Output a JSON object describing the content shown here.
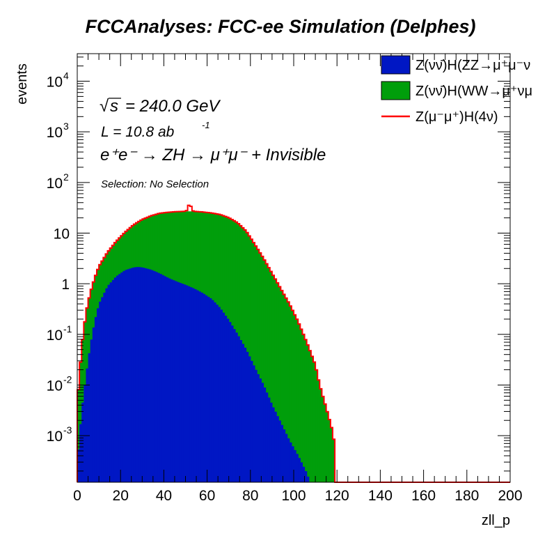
{
  "chart_data": {
    "type": "histogram",
    "title": "FCCAnalyses: FCC-ee Simulation (Delphes)",
    "xlabel": "zll_p",
    "ylabel": "events",
    "xlim": [
      0,
      200
    ],
    "ylim": [
      0.00012,
      35000
    ],
    "yscale": "log",
    "bin_width": 1,
    "bin_start": 0,
    "x_ticks": [
      0,
      20,
      40,
      60,
      80,
      100,
      120,
      140,
      160,
      180,
      200
    ],
    "y_ticks": [
      {
        "value": 0.001,
        "base": "10",
        "exp": "-3"
      },
      {
        "value": 0.01,
        "base": "10",
        "exp": "-2"
      },
      {
        "value": 0.1,
        "base": "10",
        "exp": "-1"
      },
      {
        "value": 1,
        "base": "1",
        "exp": ""
      },
      {
        "value": 10,
        "base": "10",
        "exp": ""
      },
      {
        "value": 100,
        "base": "10",
        "exp": "2"
      },
      {
        "value": 1000,
        "base": "10",
        "exp": "3"
      },
      {
        "value": 10000,
        "base": "10",
        "exp": "4"
      }
    ],
    "annotations": {
      "sqrt_s": "= 240.0 GeV",
      "sqrt_symbol": "√",
      "sqrt_s_var": "s",
      "lumi_prefix": "L = 10.8 ab",
      "lumi_exp": "-1",
      "process": "e⁺e⁻ → ZH → μ⁺μ⁻ + Invisible",
      "selection": "Selection: No Selection"
    },
    "series": [
      {
        "name": "Z(νν̄)H(ZZ→μ⁺μ⁻ν",
        "legend_text": "Z(νν̄)H(ZZ→μ⁺μ⁻ν",
        "style": "fill",
        "color": "#0017c4",
        "knots": [
          [
            0,
            0.0003
          ],
          [
            2,
            0.003
          ],
          [
            4,
            0.015
          ],
          [
            6,
            0.06
          ],
          [
            8,
            0.18
          ],
          [
            10,
            0.4
          ],
          [
            14,
            0.9
          ],
          [
            18,
            1.4
          ],
          [
            22,
            1.85
          ],
          [
            26,
            2.1
          ],
          [
            28,
            2.15
          ],
          [
            30,
            2.1
          ],
          [
            34,
            1.9
          ],
          [
            38,
            1.6
          ],
          [
            42,
            1.3
          ],
          [
            46,
            1.1
          ],
          [
            50,
            0.95
          ],
          [
            54,
            0.8
          ],
          [
            58,
            0.65
          ],
          [
            62,
            0.5
          ],
          [
            66,
            0.33
          ],
          [
            70,
            0.19
          ],
          [
            74,
            0.1
          ],
          [
            78,
            0.05
          ],
          [
            82,
            0.022
          ],
          [
            86,
            0.01
          ],
          [
            90,
            0.004
          ],
          [
            94,
            0.0018
          ],
          [
            98,
            0.0008
          ],
          [
            102,
            0.0004
          ],
          [
            106,
            0.00018
          ],
          [
            108,
            0.0001
          ]
        ]
      },
      {
        "name": "Z(νν̄)H(WW→μ⁺νμ",
        "legend_text": "Z(νν̄)H(WW→μ⁺νμ",
        "style": "fill",
        "color": "#009e0b",
        "knots": [
          [
            0,
            0.004
          ],
          [
            2,
            0.05
          ],
          [
            4,
            0.25
          ],
          [
            6,
            0.6
          ],
          [
            8,
            1.1
          ],
          [
            10,
            1.8
          ],
          [
            14,
            3.3
          ],
          [
            18,
            5.5
          ],
          [
            22,
            8.5
          ],
          [
            26,
            12.5
          ],
          [
            30,
            16.5
          ],
          [
            34,
            20
          ],
          [
            38,
            23
          ],
          [
            42,
            24.5
          ],
          [
            46,
            25.5
          ],
          [
            50,
            26
          ],
          [
            54,
            26
          ],
          [
            58,
            25.5
          ],
          [
            62,
            24.5
          ],
          [
            66,
            23
          ],
          [
            70,
            20
          ],
          [
            74,
            16
          ],
          [
            78,
            11
          ],
          [
            82,
            6
          ],
          [
            86,
            3.2
          ],
          [
            90,
            1.6
          ],
          [
            94,
            0.8
          ],
          [
            98,
            0.4
          ],
          [
            102,
            0.18
          ],
          [
            106,
            0.07
          ],
          [
            110,
            0.025
          ],
          [
            112,
            0.01
          ],
          [
            114,
            0.005
          ],
          [
            116,
            0.0025
          ],
          [
            118,
            0.0012
          ],
          [
            119,
            0.0006
          ]
        ]
      },
      {
        "name": "Z(μ⁻μ⁺)H(4ν)",
        "legend_text": "Z(μ⁻μ⁺)H(4ν)",
        "style": "line",
        "color": "#ff0000",
        "knots": [
          [
            46,
            0.001
          ],
          [
            48,
            0.003
          ],
          [
            50,
            0.15
          ],
          [
            51,
            6
          ],
          [
            52,
            12
          ],
          [
            53,
            4
          ],
          [
            54,
            0.1
          ],
          [
            56,
            0.002
          ],
          [
            58,
            0.0005
          ]
        ]
      }
    ],
    "legend": {
      "position": "top-right"
    },
    "grid": false
  }
}
